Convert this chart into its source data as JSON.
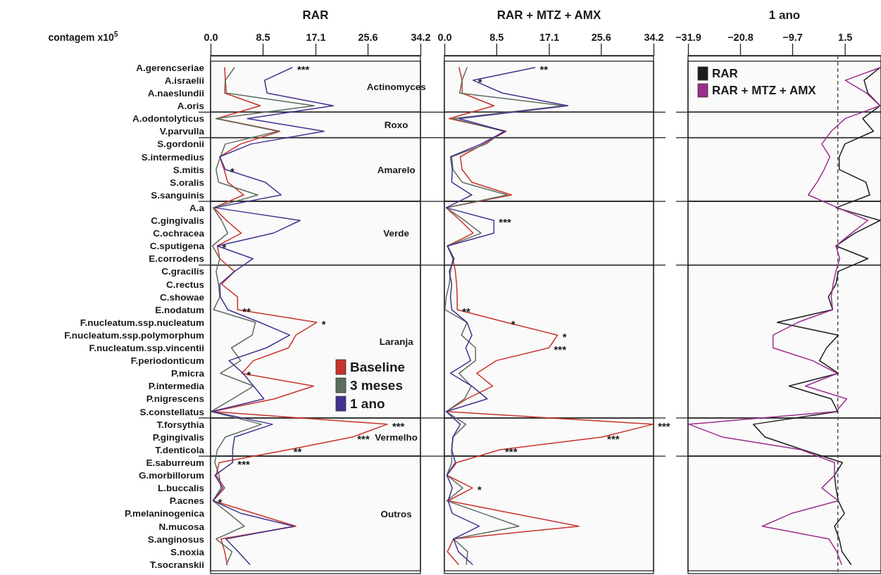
{
  "chart_data": [
    {
      "type": "line",
      "orientation": "horizontal",
      "title": "RAR",
      "xlabel": "contagem x10$^{5}$",
      "categories": [
        "A.gerencseriae",
        "A.israelii",
        "A.naeslundii",
        "A.oris",
        "A.odontolyticus",
        "V.parvulla",
        "S.gordonii",
        "S.intermedius",
        "S.mitis",
        "S.oralis",
        "S.sanguinis",
        "A.a",
        "C.gingivalis",
        "C.ochracea",
        "C.sputigena",
        "E.corrodens",
        "C.gracilis",
        "C.rectus",
        "C.showae",
        "E.nodatum",
        "F.nucleatum.ssp.nucleatum",
        "F.nucleatum.ssp.polymorphum",
        "F.nucleatum.ssp.vincentii",
        "F.periodonticum",
        "P.micra",
        "P.intermedia",
        "P.nigrescens",
        "S.constellatus",
        "T.forsythia",
        "P.gingivalis",
        "T.denticola",
        "E.saburreum",
        "G.morbillorum",
        "L.buccalis",
        "P.acnes",
        "P.melaninogenica",
        "N.mucosa",
        "S.anginosus",
        "S.noxia",
        "T.socranskii"
      ],
      "xlim": [
        0,
        34.2
      ],
      "xticks": [
        {
          "value": 0,
          "label": "0.0"
        },
        8.5,
        17.1,
        25.6,
        34.2
      ],
      "legend": "right",
      "series": [
        {
          "name": "Baseline",
          "color": "#c8332b",
          "values": [
            2.3,
            2.4,
            2.3,
            8.1,
            1.0,
            11.3,
            4.9,
            1.5,
            2.2,
            2.8,
            5.4,
            0.5,
            2.6,
            5.0,
            1.1,
            1.5,
            3.9,
            1.8,
            4.4,
            4.4,
            17.3,
            13.9,
            12.7,
            7.0,
            5.1,
            16.8,
            10.4,
            0.3,
            28.8,
            23.1,
            12.7,
            1.4,
            0.9,
            2.3,
            0.4,
            7.1,
            13.9,
            1.7,
            2.3,
            2.7
          ]
        },
        {
          "name": "3 meses",
          "color": "#5a6e5e",
          "values": [
            3.9,
            2.4,
            2.6,
            16.9,
            0.9,
            11.0,
            2.4,
            1.6,
            0.9,
            1.3,
            7.7,
            0.4,
            1.8,
            2.8,
            0.3,
            1.5,
            0.9,
            1.3,
            1.5,
            0.5,
            7.3,
            6.8,
            3.4,
            4.9,
            1.6,
            7.0,
            3.6,
            0.1,
            8.3,
            2.4,
            1.1,
            0.7,
            1.4,
            1.7,
            0.4,
            3.0,
            5.5,
            0.9,
            3.5,
            2.6
          ]
        },
        {
          "name": "1 ano",
          "color": "#44318f",
          "values": [
            13.3,
            8.8,
            9.2,
            20.0,
            6.0,
            18.5,
            6.6,
            1.5,
            2.4,
            8.9,
            11.5,
            0.7,
            14.6,
            10.2,
            1.1,
            6.9,
            3.9,
            1.5,
            1.6,
            2.8,
            8.0,
            12.9,
            9.1,
            3.0,
            5.3,
            7.0,
            8.7,
            0.2,
            10.1,
            3.9,
            3.6,
            3.6,
            0.7,
            2.0,
            0.4,
            5.0,
            13.6,
            2.5,
            4.5,
            6.4
          ]
        }
      ],
      "bands": [
        {
          "axis": "y",
          "from": "A.gerencseriae",
          "to": "A.oris",
          "label": "Actinomyces"
        },
        {
          "axis": "y",
          "from": "A.odontolyticus",
          "to": "V.parvulla",
          "label": "Roxo"
        },
        {
          "axis": "y",
          "from": "S.gordonii",
          "to": "S.sanguinis",
          "label": "Amarelo"
        },
        {
          "axis": "y",
          "from": "A.a",
          "to": "E.corrodens",
          "label": "Verde"
        },
        {
          "axis": "y",
          "from": "C.gracilis",
          "to": "S.constellatus",
          "label": "Laranja"
        },
        {
          "axis": "y",
          "from": "T.forsythia",
          "to": "T.denticola",
          "label": "Vermelho"
        },
        {
          "axis": "y",
          "from": "E.saburreum",
          "to": "T.socranskii",
          "label": "Outros"
        }
      ],
      "annotations": [
        {
          "text": "***",
          "x": 13.3,
          "y": "A.gerencseriae"
        },
        {
          "text": "*",
          "x": 2.4,
          "y": "S.mitis"
        },
        {
          "text": "*",
          "x": 1.1,
          "y": "C.sputigena"
        },
        {
          "text": "**",
          "x": 4.4,
          "y": "E.nodatum"
        },
        {
          "text": "*",
          "x": 17.3,
          "y": "F.nucleatum.ssp.nucleatum"
        },
        {
          "text": "*",
          "x": 5.1,
          "y": "P.micra"
        },
        {
          "text": "***",
          "x": 28.8,
          "y": "T.forsythia"
        },
        {
          "text": "***",
          "x": 23.1,
          "y": "P.gingivalis"
        },
        {
          "text": "**",
          "x": 12.7,
          "y": "T.denticola"
        },
        {
          "text": "***",
          "x": 3.6,
          "y": "E.saburreum"
        },
        {
          "text": "*",
          "x": 0.4,
          "y": "P.acnes"
        }
      ]
    },
    {
      "type": "line",
      "orientation": "horizontal",
      "title": "RAR + MTZ + AMX",
      "tick_labels": "x",
      "categories": [
        "A.gerencseriae",
        "A.israelii",
        "A.naeslundii",
        "A.oris",
        "A.odontolyticus",
        "V.parvulla",
        "S.gordonii",
        "S.intermedius",
        "S.mitis",
        "S.oralis",
        "S.sanguinis",
        "A.a",
        "C.gingivalis",
        "C.ochracea",
        "C.sputigena",
        "E.corrodens",
        "C.gracilis",
        "C.rectus",
        "C.showae",
        "E.nodatum",
        "F.nucleatum.ssp.nucleatum",
        "F.nucleatum.ssp.polymorphum",
        "F.nucleatum.ssp.vincentii",
        "F.periodonticum",
        "P.micra",
        "P.intermedia",
        "P.nigrescens",
        "S.constellatus",
        "T.forsythia",
        "P.gingivalis",
        "T.denticola",
        "E.saburreum",
        "G.morbillorum",
        "L.buccalis",
        "P.acnes",
        "P.melaninogenica",
        "N.mucosa",
        "S.anginosus",
        "S.noxia",
        "T.socranskii"
      ],
      "xlim": [
        0,
        34.2
      ],
      "xticks": [
        {
          "value": 0,
          "label": "0.0"
        },
        8.5,
        17.1,
        25.6,
        34.2
      ],
      "series": [
        {
          "color": "#c8332b",
          "values": [
            2.4,
            2.9,
            2.9,
            8.1,
            0.8,
            10.1,
            6.4,
            2.6,
            2.9,
            4.5,
            11.0,
            0.3,
            2.6,
            4.7,
            0.5,
            1.4,
            1.8,
            2.0,
            2.1,
            2.1,
            10.1,
            18.5,
            17.1,
            8.5,
            5.3,
            7.9,
            3.7,
            0.3,
            34.1,
            25.8,
            9.1,
            2.0,
            0.4,
            4.6,
            0.6,
            11.2,
            22.0,
            1.5,
            0.5,
            2.3
          ]
        },
        {
          "color": "#5a6e5e",
          "values": [
            3.7,
            2.9,
            2.5,
            19.5,
            1.4,
            9.7,
            6.8,
            1.2,
            1.4,
            2.9,
            10.3,
            0.3,
            3.3,
            6.0,
            0.5,
            1.4,
            1.0,
            0.8,
            0.3,
            0.1,
            3.7,
            2.8,
            5.1,
            5.1,
            2.4,
            4.4,
            3.3,
            0.3,
            3.5,
            1.4,
            1.2,
            1.2,
            0.4,
            3.0,
            0.4,
            6.3,
            12.2,
            1.5,
            3.8,
            3.6
          ]
        },
        {
          "color": "#44318f",
          "values": [
            14.8,
            4.7,
            9.5,
            20.2,
            2.4,
            9.9,
            6.0,
            1.0,
            1.3,
            1.2,
            4.5,
            0.3,
            8.1,
            8.1,
            0.5,
            1.6,
            0.8,
            1.2,
            1.0,
            1.2,
            3.7,
            4.5,
            3.5,
            4.3,
            1.0,
            4.5,
            7.0,
            0.3,
            2.6,
            1.4,
            1.2,
            1.8,
            0.4,
            1.3,
            0.6,
            1.3,
            5.7,
            1.5,
            2.3,
            4.6
          ]
        }
      ],
      "bands": [
        {
          "axis": "y",
          "from": "A.gerencseriae",
          "to": "A.oris"
        },
        {
          "axis": "y",
          "from": "A.odontolyticus",
          "to": "V.parvulla"
        },
        {
          "axis": "y",
          "from": "S.gordonii",
          "to": "S.sanguinis"
        },
        {
          "axis": "y",
          "from": "A.a",
          "to": "E.corrodens"
        },
        {
          "axis": "y",
          "from": "C.gracilis",
          "to": "S.constellatus"
        },
        {
          "axis": "y",
          "from": "T.forsythia",
          "to": "T.denticola"
        },
        {
          "axis": "y",
          "from": "E.saburreum",
          "to": "T.socranskii"
        }
      ],
      "annotations": [
        {
          "text": "**",
          "x": 14.8,
          "y": "A.gerencseriae"
        },
        {
          "text": "*",
          "x": 4.7,
          "y": "A.israelii"
        },
        {
          "text": "***",
          "x": 8.1,
          "y": "C.gingivalis"
        },
        {
          "text": "**",
          "x": 2.1,
          "y": "E.nodatum"
        },
        {
          "text": "*",
          "x": 10.1,
          "y": "F.nucleatum.ssp.nucleatum"
        },
        {
          "text": "*",
          "x": 18.5,
          "y": "F.nucleatum.ssp.polymorphum"
        },
        {
          "text": "***",
          "x": 17.1,
          "y": "F.nucleatum.ssp.vincentii"
        },
        {
          "text": "***",
          "x": 34.1,
          "y": "T.forsythia"
        },
        {
          "text": "***",
          "x": 25.8,
          "y": "P.gingivalis"
        },
        {
          "text": "***",
          "x": 9.1,
          "y": "T.denticola"
        },
        {
          "text": "*",
          "x": 4.6,
          "y": "L.buccalis"
        }
      ]
    },
    {
      "type": "line",
      "orientation": "horizontal",
      "title": "1 ano",
      "tick_labels": "x",
      "categories": [
        "A.gerencseriae",
        "A.israelii",
        "A.naeslundii",
        "A.oris",
        "A.odontolyticus",
        "V.parvulla",
        "S.gordonii",
        "S.intermedius",
        "S.mitis",
        "S.oralis",
        "S.sanguinis",
        "A.a",
        "C.gingivalis",
        "C.ochracea",
        "C.sputigena",
        "E.corrodens",
        "C.gracilis",
        "C.rectus",
        "C.showae",
        "E.nodatum",
        "F.nucleatum.ssp.nucleatum",
        "F.nucleatum.ssp.polymorphum",
        "F.nucleatum.ssp.vincentii",
        "F.periodonticum",
        "P.micra",
        "P.intermedia",
        "P.nigrescens",
        "S.constellatus",
        "T.forsythia",
        "P.gingivalis",
        "T.denticola",
        "E.saburreum",
        "G.morbillorum",
        "L.buccalis",
        "P.acnes",
        "P.melaninogenica",
        "N.mucosa",
        "S.anginosus",
        "S.noxia",
        "T.socranskii"
      ],
      "xlim": [
        -31.9,
        9.2
      ],
      "xticks": [
        {
          "value": -31.9,
          "label": "−31.9"
        },
        {
          "value": -20.8,
          "label": "−20.8"
        },
        {
          "value": -9.7,
          "label": "−9.7"
        },
        1.5
      ],
      "legend": "top left",
      "ref_lines": [
        {
          "axis": "x",
          "value": 0,
          "line_style": "dashed",
          "color": "#555555"
        }
      ],
      "series": [
        {
          "name": "RAR",
          "color": "#1c1c1c",
          "values": [
            9.0,
            5.6,
            6.4,
            9.0,
            5.3,
            7.6,
            1.5,
            0.3,
            0.3,
            6.0,
            6.8,
            -0.4,
            9.0,
            3.6,
            -0.4,
            6.4,
            0.1,
            -0.4,
            -2.0,
            -1.1,
            -12.9,
            0.1,
            -2.4,
            -3.9,
            0.1,
            -10.4,
            -1.4,
            0.0,
            -18.0,
            -15.5,
            -7.5,
            1.0,
            -0.7,
            -0.4,
            0.1,
            1.4,
            -0.7,
            0.3,
            0.9,
            2.8
          ]
        },
        {
          "name": "RAR + MTZ + AMX",
          "color": "#9b2d8c",
          "values": [
            9.0,
            1.6,
            6.1,
            9.0,
            1.6,
            -1.4,
            -3.4,
            -1.7,
            -2.9,
            -4.4,
            -6.3,
            0.0,
            6.4,
            2.9,
            -0.4,
            0.4,
            -0.4,
            -1.0,
            -1.4,
            -1.1,
            -8.5,
            -13.8,
            -13.8,
            -5.4,
            -0.1,
            -6.9,
            1.9,
            -0.4,
            -31.7,
            -24.6,
            -7.8,
            -0.7,
            -0.7,
            -3.4,
            0.1,
            -9.9,
            -16.1,
            -1.9,
            -0.2,
            0.8
          ]
        }
      ],
      "bands": [
        {
          "axis": "y",
          "from": "A.gerencseriae",
          "to": "A.oris"
        },
        {
          "axis": "y",
          "from": "A.odontolyticus",
          "to": "V.parvulla"
        },
        {
          "axis": "y",
          "from": "S.gordonii",
          "to": "S.sanguinis"
        },
        {
          "axis": "y",
          "from": "A.a",
          "to": "E.corrodens"
        },
        {
          "axis": "y",
          "from": "C.gracilis",
          "to": "S.constellatus"
        },
        {
          "axis": "y",
          "from": "T.forsythia",
          "to": "T.denticola"
        },
        {
          "axis": "y",
          "from": "E.saburreum",
          "to": "T.socranskii"
        }
      ]
    }
  ]
}
